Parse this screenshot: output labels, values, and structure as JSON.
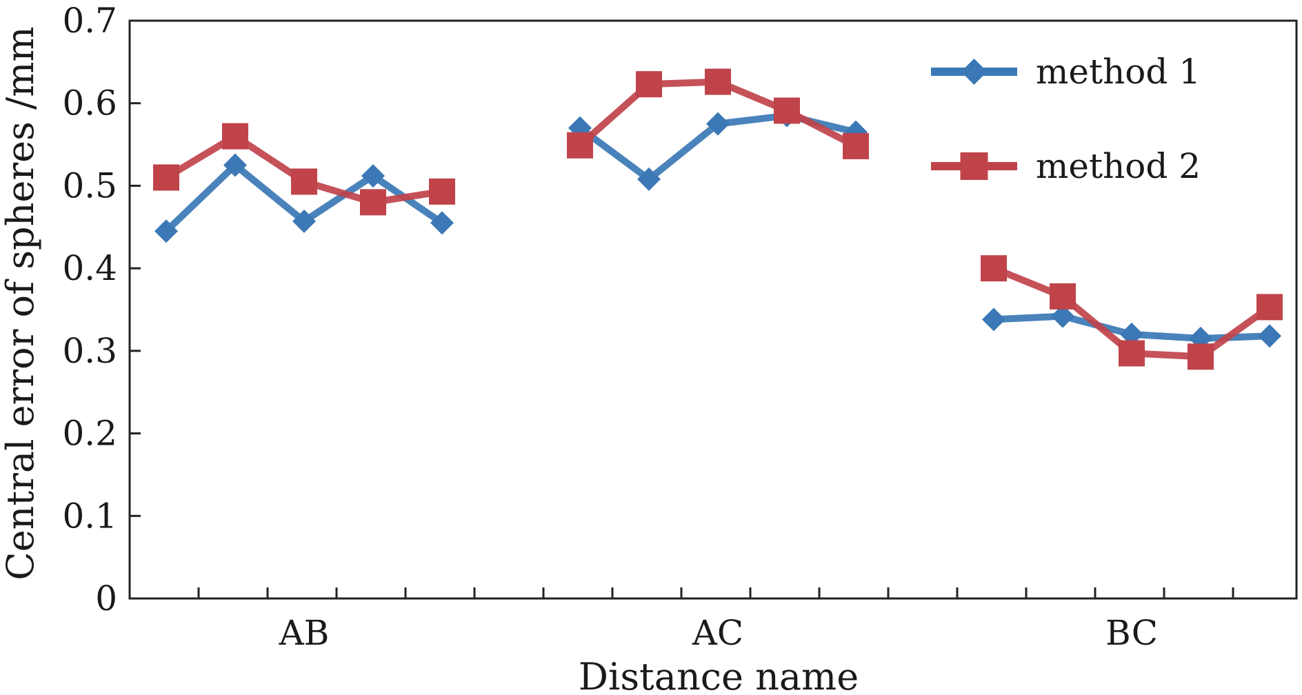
{
  "chart_data": {
    "type": "line",
    "title": "",
    "xlabel": "Distance name",
    "ylabel": "Central error of spheres /mm",
    "ylim": [
      0,
      0.7
    ],
    "yticks": [
      "0",
      "0.1",
      "0.2",
      "0.3",
      "0.4",
      "0.5",
      "0.6",
      "0.7"
    ],
    "groups": [
      "AB",
      "AC",
      "BC"
    ],
    "points_per_group": 5,
    "grid": false,
    "legend_position": "top-right",
    "series": [
      {
        "name": "method 1",
        "color": "#3b78b5",
        "marker": "diamond",
        "values": [
          [
            0.445,
            0.525,
            0.457,
            0.512,
            0.455
          ],
          [
            0.57,
            0.508,
            0.575,
            0.585,
            0.565
          ],
          [
            0.338,
            0.342,
            0.32,
            0.315,
            0.318
          ]
        ]
      },
      {
        "name": "method 2",
        "color": "#c0434a",
        "marker": "square",
        "values": [
          [
            0.51,
            0.56,
            0.505,
            0.48,
            0.493
          ],
          [
            0.549,
            0.623,
            0.626,
            0.591,
            0.548
          ],
          [
            0.4,
            0.366,
            0.297,
            0.293,
            0.353
          ]
        ]
      }
    ]
  }
}
